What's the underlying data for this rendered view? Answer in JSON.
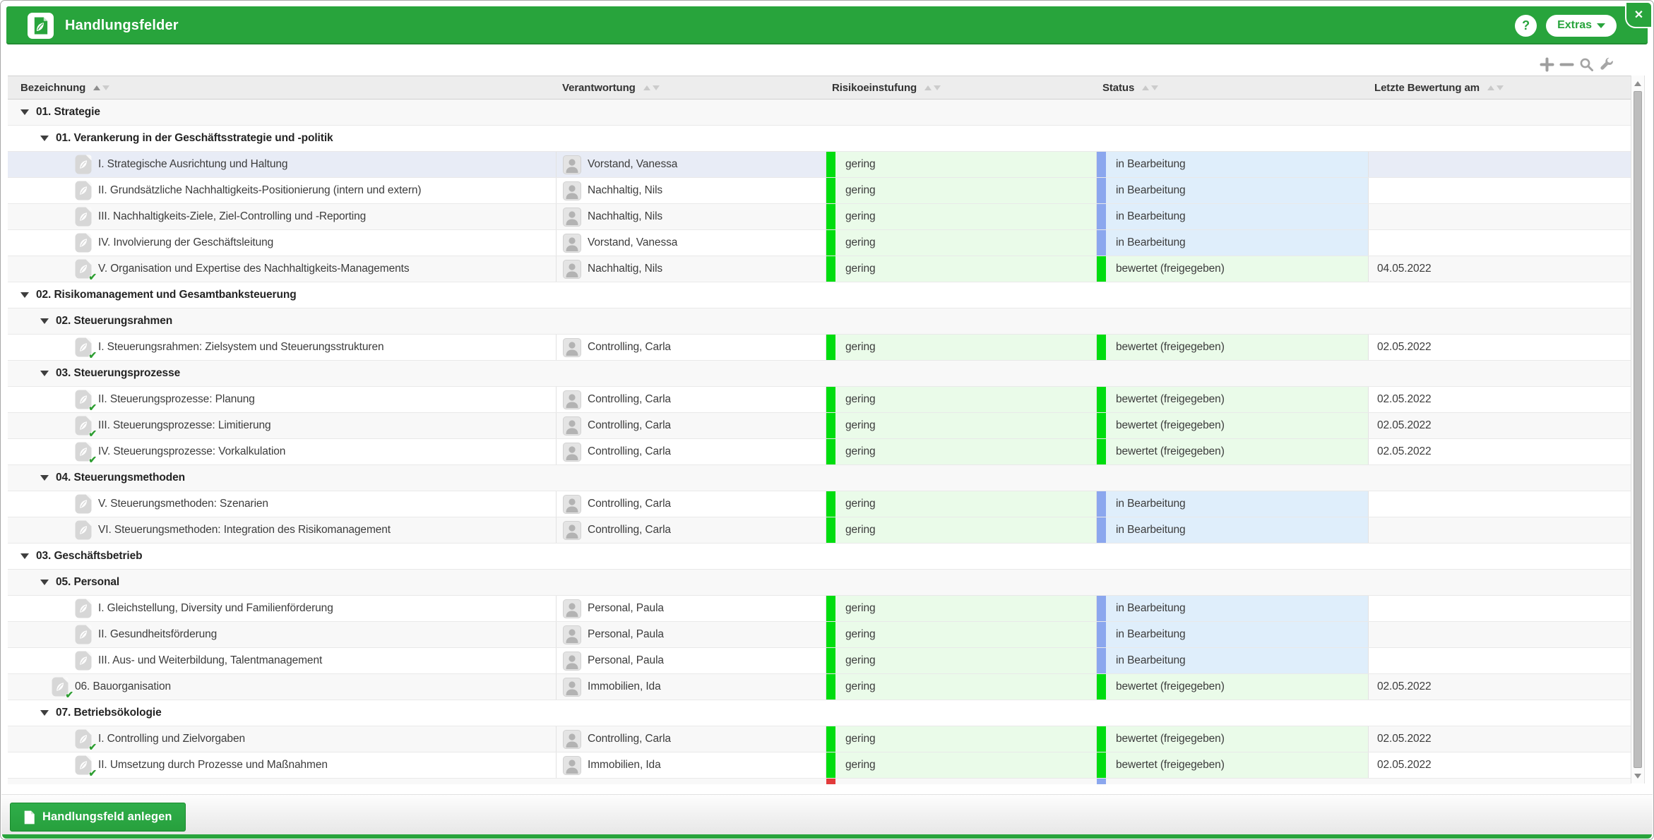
{
  "window": {
    "title": "Handlungsfelder",
    "help_label": "?",
    "extras_label": "Extras",
    "close_label": "✕"
  },
  "brand": {
    "green": "#28a43c"
  },
  "toolbar_icons": [
    "plus",
    "minus",
    "search",
    "wrench"
  ],
  "table": {
    "columns": [
      {
        "label": "Bezeichnung",
        "sort_active": true
      },
      {
        "label": "Verantwortung",
        "sort_active": false
      },
      {
        "label": "Risikoeinstufung",
        "sort_active": false
      },
      {
        "label": "Status",
        "sort_active": false
      },
      {
        "label": "Letzte Bewertung am",
        "sort_active": false
      }
    ],
    "rows": [
      {
        "type": "group",
        "level": 1,
        "label": "01. Strategie"
      },
      {
        "type": "group",
        "level": 2,
        "label": "01. Verankerung in der Geschäftsstrategie und -politik"
      },
      {
        "type": "item",
        "level": 3,
        "label": "I. Strategische Ausrichtung und Haltung",
        "checked": false,
        "person": "Vorstand, Vanessa",
        "risk": "gering",
        "status": "in Bearbeitung",
        "date": "",
        "selected": true
      },
      {
        "type": "item",
        "level": 3,
        "label": "II. Grundsätzliche Nachhaltigkeits-Positionierung (intern und extern)",
        "checked": false,
        "person": "Nachhaltig, Nils",
        "risk": "gering",
        "status": "in Bearbeitung",
        "date": ""
      },
      {
        "type": "item",
        "level": 3,
        "label": "III. Nachhaltigkeits-Ziele, Ziel-Controlling und -Reporting",
        "checked": false,
        "person": "Nachhaltig, Nils",
        "risk": "gering",
        "status": "in Bearbeitung",
        "date": ""
      },
      {
        "type": "item",
        "level": 3,
        "label": "IV. Involvierung der Geschäftsleitung",
        "checked": false,
        "person": "Vorstand, Vanessa",
        "risk": "gering",
        "status": "in Bearbeitung",
        "date": ""
      },
      {
        "type": "item",
        "level": 3,
        "label": "V. Organisation und Expertise des Nachhaltigkeits-Managements",
        "checked": true,
        "person": "Nachhaltig, Nils",
        "risk": "gering",
        "status": "bewertet (freigegeben)",
        "date": "04.05.2022"
      },
      {
        "type": "group",
        "level": 1,
        "label": "02. Risikomanagement und Gesamtbanksteuerung"
      },
      {
        "type": "group",
        "level": 2,
        "label": "02. Steuerungsrahmen"
      },
      {
        "type": "item",
        "level": 3,
        "label": "I. Steuerungsrahmen: Zielsystem und Steuerungsstrukturen",
        "checked": true,
        "person": "Controlling, Carla",
        "risk": "gering",
        "status": "bewertet (freigegeben)",
        "date": "02.05.2022"
      },
      {
        "type": "group",
        "level": 2,
        "label": "03. Steuerungsprozesse"
      },
      {
        "type": "item",
        "level": 3,
        "label": "II. Steuerungsprozesse: Planung",
        "checked": true,
        "person": "Controlling, Carla",
        "risk": "gering",
        "status": "bewertet (freigegeben)",
        "date": "02.05.2022"
      },
      {
        "type": "item",
        "level": 3,
        "label": "III. Steuerungsprozesse: Limitierung",
        "checked": true,
        "person": "Controlling, Carla",
        "risk": "gering",
        "status": "bewertet (freigegeben)",
        "date": "02.05.2022"
      },
      {
        "type": "item",
        "level": 3,
        "label": "IV. Steuerungsprozesse: Vorkalkulation",
        "checked": true,
        "person": "Controlling, Carla",
        "risk": "gering",
        "status": "bewertet (freigegeben)",
        "date": "02.05.2022"
      },
      {
        "type": "group",
        "level": 2,
        "label": "04. Steuerungsmethoden"
      },
      {
        "type": "item",
        "level": 3,
        "label": "V. Steuerungsmethoden: Szenarien",
        "checked": false,
        "person": "Controlling, Carla",
        "risk": "gering",
        "status": "in Bearbeitung",
        "date": ""
      },
      {
        "type": "item",
        "level": 3,
        "label": "VI. Steuerungsmethoden: Integration des Risikomanagement",
        "checked": false,
        "person": "Controlling, Carla",
        "risk": "gering",
        "status": "in Bearbeitung",
        "date": ""
      },
      {
        "type": "group",
        "level": 1,
        "label": "03. Geschäftsbetrieb"
      },
      {
        "type": "group",
        "level": 2,
        "label": "05. Personal"
      },
      {
        "type": "item",
        "level": 3,
        "label": "I. Gleichstellung, Diversity und Familienförderung",
        "checked": false,
        "person": "Personal, Paula",
        "risk": "gering",
        "status": "in Bearbeitung",
        "date": ""
      },
      {
        "type": "item",
        "level": 3,
        "label": "II. Gesundheitsförderung",
        "checked": false,
        "person": "Personal, Paula",
        "risk": "gering",
        "status": "in Bearbeitung",
        "date": ""
      },
      {
        "type": "item",
        "level": 3,
        "label": "III. Aus- und Weiterbildung, Talentmanagement",
        "checked": false,
        "person": "Personal, Paula",
        "risk": "gering",
        "status": "in Bearbeitung",
        "date": ""
      },
      {
        "type": "item",
        "level": 2,
        "label": "06. Bauorganisation",
        "checked": true,
        "person": "Immobilien, Ida",
        "risk": "gering",
        "status": "bewertet (freigegeben)",
        "date": "02.05.2022"
      },
      {
        "type": "group",
        "level": 2,
        "label": "07. Betriebsökologie"
      },
      {
        "type": "item",
        "level": 3,
        "label": "I. Controlling und Zielvorgaben",
        "checked": true,
        "person": "Controlling, Carla",
        "risk": "gering",
        "status": "bewertet (freigegeben)",
        "date": "02.05.2022"
      },
      {
        "type": "item",
        "level": 3,
        "label": "II. Umsetzung durch Prozesse und Maßnahmen",
        "checked": true,
        "person": "Immobilien, Ida",
        "risk": "gering",
        "status": "bewertet (freigegeben)",
        "date": "02.05.2022"
      }
    ],
    "partial_next_row": {
      "risk_bar": "#e23b3b",
      "status_bar": "#8ba7ee"
    }
  },
  "risk_styles": {
    "gering": {
      "bar": "#00dd0f",
      "bg": "#eafbe9"
    }
  },
  "status_styles": {
    "in Bearbeitung": {
      "bar": "#8ba7ee",
      "bg": "#dfeefb"
    },
    "bewertet (freigegeben)": {
      "bar": "#00dd0f",
      "bg": "#eafbe9"
    }
  },
  "icons": {
    "checkmark": "✔"
  },
  "footer": {
    "create_button_label": "Handlungsfeld anlegen"
  }
}
